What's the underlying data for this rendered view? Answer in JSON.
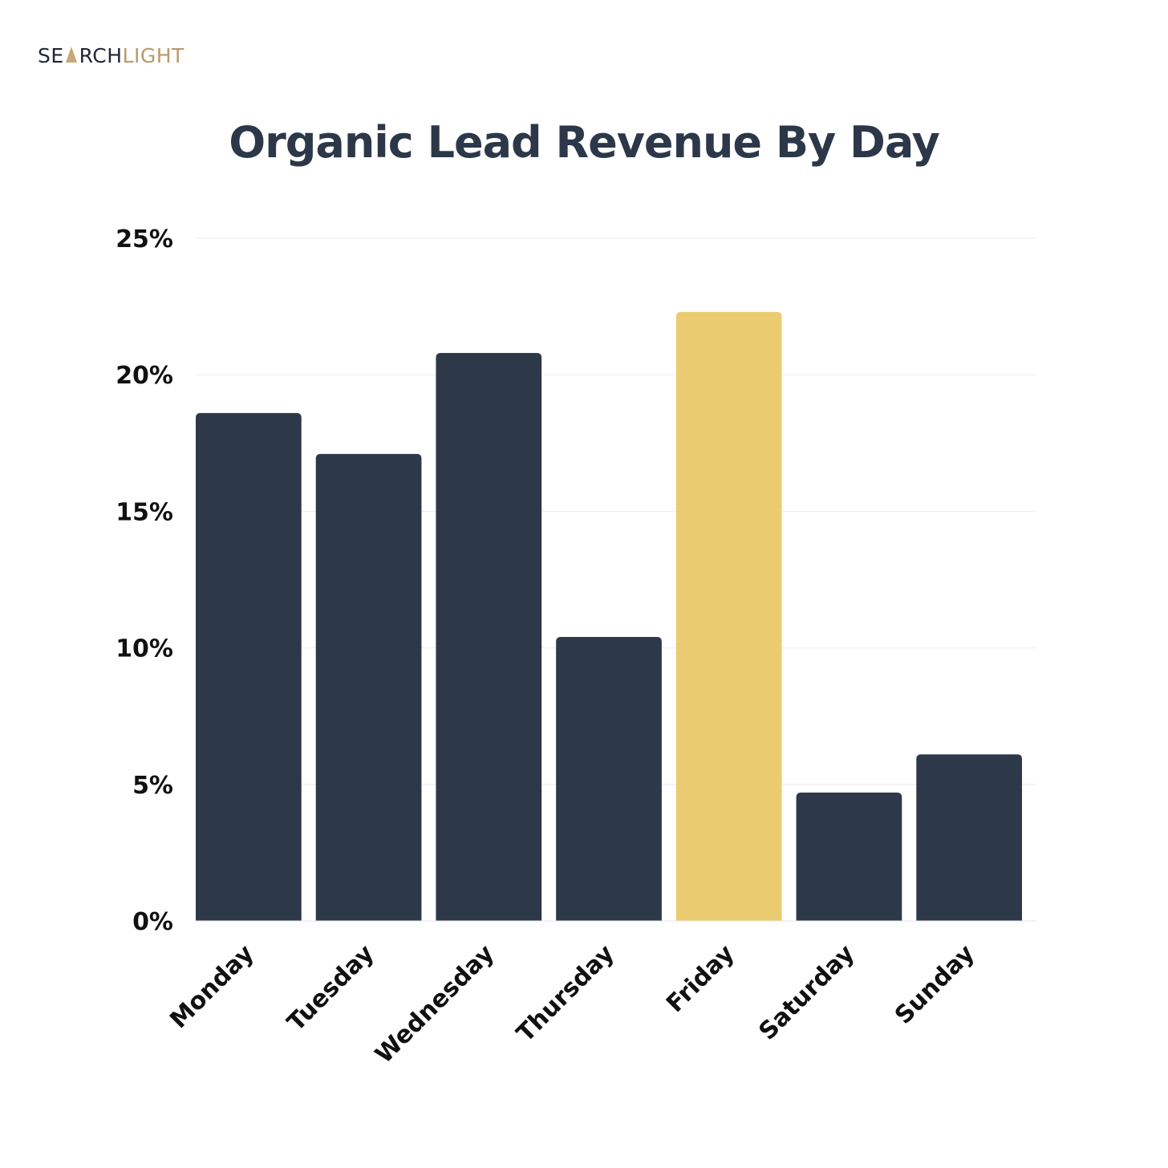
{
  "brand": {
    "logo_part1": "SE",
    "logo_part2": "RCH",
    "logo_part3": "LIGHT",
    "dark_color": "#1f2733",
    "gold_color": "#b89a6a"
  },
  "chart_data": {
    "type": "bar",
    "title": "Organic Lead Revenue By Day",
    "xlabel": "",
    "ylabel": "",
    "categories": [
      "Monday",
      "Tuesday",
      "Wednesday",
      "Thursday",
      "Friday",
      "Saturday",
      "Sunday"
    ],
    "values": [
      18.6,
      17.1,
      20.8,
      10.4,
      22.3,
      4.7,
      6.1
    ],
    "ylim": [
      0,
      25
    ],
    "yticks": [
      0,
      5,
      10,
      15,
      20,
      25
    ],
    "ytick_labels": [
      "0%",
      "5%",
      "10%",
      "15%",
      "20%",
      "25%"
    ],
    "highlight_category": "Friday",
    "bar_color": "#2d3849",
    "highlight_color": "#ebcb70",
    "grid": true,
    "legend": "none"
  }
}
